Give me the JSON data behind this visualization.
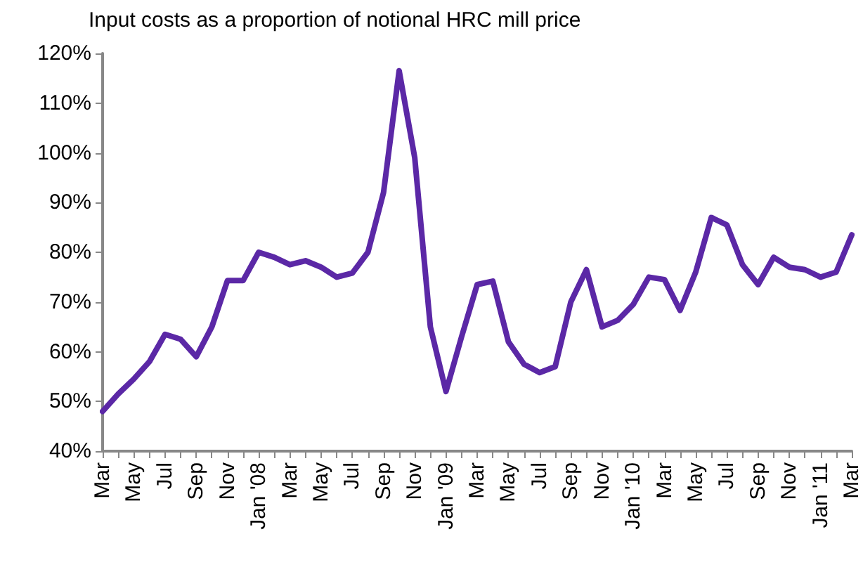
{
  "chart_data": {
    "type": "line",
    "title": "Input costs as a proportion of notional HRC mill price",
    "categories": [
      "Mar",
      null,
      "May",
      null,
      "Jul",
      null,
      "Sep",
      null,
      "Nov",
      null,
      "Jan '08",
      null,
      "Mar",
      null,
      "May",
      null,
      "Jul",
      null,
      "Sep",
      null,
      "Nov",
      null,
      "Jan '09",
      null,
      "Mar",
      null,
      "May",
      null,
      "Jul",
      null,
      "Sep",
      null,
      "Nov",
      null,
      "Jan '10",
      null,
      "Mar",
      null,
      "May",
      null,
      "Jul",
      null,
      "Sep",
      null,
      "Nov",
      null,
      "Jan '11",
      null,
      "Mar"
    ],
    "series": [
      {
        "color": "#5b28a6",
        "values": [
          48,
          51.5,
          54.5,
          58,
          63.5,
          62.5,
          59,
          65,
          74.3,
          74.3,
          80,
          79,
          77.5,
          78.3,
          77,
          75,
          75.8,
          80,
          92,
          116.5,
          99,
          65,
          52,
          63,
          73.5,
          74.2,
          62,
          57.5,
          55.8,
          57,
          70,
          76.5,
          65,
          66.3,
          69.5,
          75,
          74.5,
          68.3,
          76,
          87,
          85.5,
          77.5,
          73.5,
          79,
          77,
          76.5,
          75,
          76,
          83.5
        ]
      }
    ],
    "ylim": [
      40,
      120
    ],
    "yticks": [
      {
        "value": 40,
        "label": "40%"
      },
      {
        "value": 50,
        "label": "50%"
      },
      {
        "value": 60,
        "label": "60%"
      },
      {
        "value": 70,
        "label": "70%"
      },
      {
        "value": 80,
        "label": "80%"
      },
      {
        "value": 90,
        "label": "90%"
      },
      {
        "value": 100,
        "label": "100%"
      },
      {
        "value": 110,
        "label": "110%"
      },
      {
        "value": 120,
        "label": "120%"
      }
    ],
    "grid": false,
    "marker": "none",
    "line_style": "solid"
  }
}
